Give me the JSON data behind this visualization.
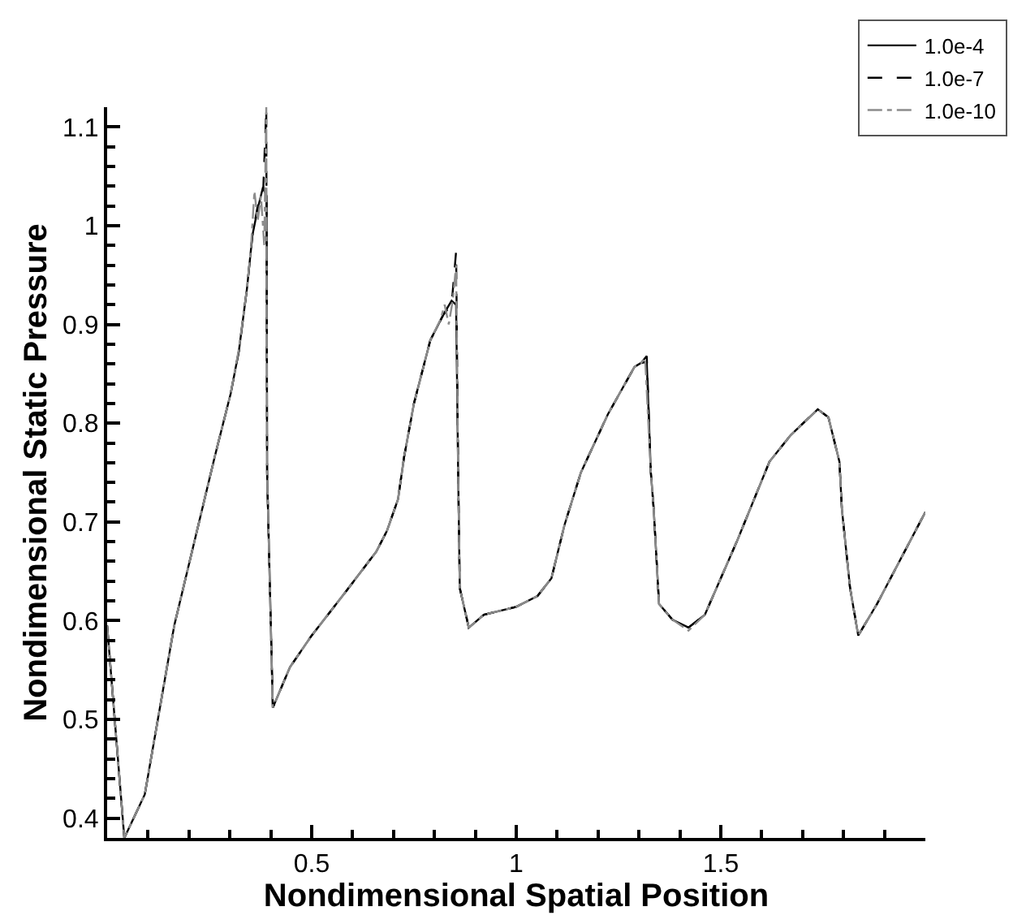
{
  "chart_data": {
    "type": "line",
    "xlabel": "Nondimensional Spatial Position",
    "ylabel": "Nondimensional Static Pressure",
    "xlim": [
      0,
      2
    ],
    "xticks": [
      0.5,
      1,
      1.5
    ],
    "ylim": [
      0.38,
      1.12
    ],
    "yticks": [
      0.4,
      0.5,
      0.6,
      0.7,
      0.8,
      0.9,
      1,
      1.1
    ],
    "grid": false,
    "legend": "top right",
    "marker": "none",
    "series": [
      {
        "name": "1.0e-4",
        "color": "#000000",
        "line_style": "solid",
        "x": [
          0,
          0.042,
          0.092,
          0.164,
          0.263,
          0.302,
          0.322,
          0.342,
          0.355,
          0.368,
          0.381,
          0.39,
          0.391,
          0.405,
          0.447,
          0.5,
          0.579,
          0.658,
          0.684,
          0.711,
          0.726,
          0.75,
          0.79,
          0.822,
          0.842,
          0.853,
          0.858,
          0.862,
          0.884,
          0.921,
          1.0,
          1.052,
          1.086,
          1.118,
          1.158,
          1.224,
          1.289,
          1.305,
          1.319,
          1.329,
          1.336,
          1.349,
          1.382,
          1.421,
          1.461,
          1.54,
          1.619,
          1.671,
          1.737,
          1.763,
          1.79,
          1.796,
          1.816,
          1.836,
          1.882,
          2.0
        ],
        "values": [
          0.595,
          0.38,
          0.424,
          0.595,
          0.766,
          0.83,
          0.873,
          0.937,
          0.99,
          1.017,
          1.039,
          1.03,
          0.75,
          0.512,
          0.553,
          0.585,
          0.627,
          0.67,
          0.691,
          0.723,
          0.766,
          0.82,
          0.884,
          0.91,
          0.924,
          0.92,
          0.75,
          0.633,
          0.593,
          0.606,
          0.614,
          0.625,
          0.643,
          0.697,
          0.75,
          0.809,
          0.857,
          0.861,
          0.862,
          0.75,
          0.713,
          0.617,
          0.601,
          0.593,
          0.606,
          0.681,
          0.761,
          0.788,
          0.814,
          0.806,
          0.761,
          0.713,
          0.633,
          0.585,
          0.617,
          0.71
        ]
      },
      {
        "name": "1.0e-7",
        "color": "#000000",
        "line_style": "dashed",
        "x": [
          0,
          0.042,
          0.092,
          0.164,
          0.263,
          0.302,
          0.322,
          0.342,
          0.355,
          0.368,
          0.381,
          0.389,
          0.391,
          0.405,
          0.447,
          0.5,
          0.579,
          0.658,
          0.684,
          0.711,
          0.726,
          0.75,
          0.79,
          0.822,
          0.842,
          0.853,
          0.858,
          0.862,
          0.884,
          0.921,
          1.0,
          1.052,
          1.086,
          1.118,
          1.158,
          1.224,
          1.289,
          1.305,
          1.319,
          1.329,
          1.336,
          1.349,
          1.382,
          1.421,
          1.461,
          1.54,
          1.619,
          1.671,
          1.737,
          1.763,
          1.79,
          1.796,
          1.816,
          1.836,
          1.882,
          2.0
        ],
        "values": [
          0.595,
          0.38,
          0.424,
          0.595,
          0.766,
          0.83,
          0.873,
          0.937,
          0.99,
          1.02,
          1.03,
          1.119,
          0.75,
          0.512,
          0.553,
          0.585,
          0.627,
          0.67,
          0.691,
          0.723,
          0.766,
          0.82,
          0.884,
          0.91,
          0.92,
          0.974,
          0.75,
          0.633,
          0.593,
          0.606,
          0.614,
          0.625,
          0.643,
          0.697,
          0.75,
          0.809,
          0.857,
          0.861,
          0.868,
          0.75,
          0.713,
          0.617,
          0.601,
          0.593,
          0.606,
          0.681,
          0.761,
          0.788,
          0.814,
          0.806,
          0.761,
          0.713,
          0.633,
          0.585,
          0.617,
          0.71
        ]
      },
      {
        "name": "1.0e-10",
        "color": "#8c8c8c",
        "line_style": "dashdot",
        "x": [
          0,
          0.042,
          0.092,
          0.164,
          0.263,
          0.302,
          0.322,
          0.342,
          0.352,
          0.36,
          0.368,
          0.376,
          0.384,
          0.389,
          0.391,
          0.405,
          0.447,
          0.5,
          0.579,
          0.658,
          0.684,
          0.711,
          0.726,
          0.75,
          0.79,
          0.815,
          0.825,
          0.835,
          0.845,
          0.853,
          0.858,
          0.862,
          0.884,
          0.921,
          1.0,
          1.052,
          1.086,
          1.118,
          1.158,
          1.224,
          1.289,
          1.305,
          1.315,
          1.329,
          1.336,
          1.349,
          1.382,
          1.421,
          1.461,
          1.54,
          1.619,
          1.671,
          1.737,
          1.763,
          1.79,
          1.796,
          1.816,
          1.836,
          1.882,
          2.0
        ],
        "values": [
          0.595,
          0.38,
          0.424,
          0.595,
          0.766,
          0.83,
          0.875,
          0.937,
          0.98,
          1.035,
          1.005,
          1.03,
          0.98,
          1.12,
          0.75,
          0.512,
          0.553,
          0.585,
          0.627,
          0.67,
          0.691,
          0.723,
          0.766,
          0.82,
          0.884,
          0.905,
          0.92,
          0.9,
          0.925,
          0.96,
          0.75,
          0.633,
          0.593,
          0.606,
          0.614,
          0.625,
          0.643,
          0.697,
          0.75,
          0.809,
          0.857,
          0.861,
          0.866,
          0.75,
          0.713,
          0.617,
          0.601,
          0.59,
          0.606,
          0.681,
          0.761,
          0.788,
          0.814,
          0.806,
          0.761,
          0.713,
          0.633,
          0.585,
          0.617,
          0.71
        ]
      }
    ]
  }
}
